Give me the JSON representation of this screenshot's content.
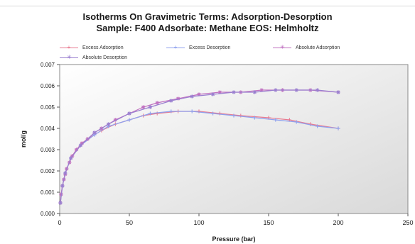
{
  "chart_data": {
    "type": "line",
    "title": "Isotherms On Gravimetric Terms: Adsorption-Desorption",
    "subtitle": "Sample: F400    Adsorbate: Methane    EOS: Helmholtz",
    "xlabel": "Pressure (bar)",
    "ylabel": "mol/g",
    "xlim": [
      0,
      250
    ],
    "ylim": [
      0,
      0.007
    ],
    "xticks": [
      "0",
      "50",
      "100",
      "150",
      "200",
      "250"
    ],
    "yticks": [
      "0.000",
      "0.001",
      "0.002",
      "0.003",
      "0.004",
      "0.005",
      "0.006",
      "0.007"
    ],
    "grid": false,
    "legend_position": "top",
    "series": [
      {
        "name": "Excess Adsorption",
        "color": "#e87a90",
        "marker": "plus",
        "points": [
          [
            0.5,
            0.0005
          ],
          [
            1,
            0.0009
          ],
          [
            2,
            0.0013
          ],
          [
            3,
            0.0016
          ],
          [
            4,
            0.00185
          ],
          [
            5,
            0.0021
          ],
          [
            7,
            0.0024
          ],
          [
            9,
            0.0027
          ],
          [
            12,
            0.003
          ],
          [
            16,
            0.0033
          ],
          [
            20,
            0.0035
          ],
          [
            25,
            0.0037
          ],
          [
            30,
            0.0039
          ],
          [
            40,
            0.0042
          ],
          [
            50,
            0.0044
          ],
          [
            60,
            0.0046
          ],
          [
            70,
            0.0047
          ],
          [
            85,
            0.0048
          ],
          [
            100,
            0.0048
          ],
          [
            115,
            0.0047
          ],
          [
            130,
            0.0046
          ],
          [
            150,
            0.0045
          ],
          [
            165,
            0.0044
          ],
          [
            180,
            0.0042
          ],
          [
            200,
            0.004
          ]
        ]
      },
      {
        "name": "Excess Desorption",
        "color": "#8ea0ee",
        "marker": "plus",
        "points": [
          [
            200,
            0.004
          ],
          [
            185,
            0.0041
          ],
          [
            170,
            0.0043
          ],
          [
            155,
            0.0044
          ],
          [
            140,
            0.0045
          ],
          [
            125,
            0.0046
          ],
          [
            110,
            0.0047
          ],
          [
            95,
            0.0048
          ],
          [
            80,
            0.0048
          ],
          [
            65,
            0.0047
          ],
          [
            50,
            0.0044
          ],
          [
            35,
            0.0041
          ],
          [
            25,
            0.0037
          ],
          [
            15,
            0.0032
          ],
          [
            8,
            0.0026
          ],
          [
            4,
            0.0019
          ],
          [
            2,
            0.0013
          ],
          [
            0.5,
            0.0005
          ]
        ]
      },
      {
        "name": "Absolute Adsorption",
        "color": "#c070c0",
        "marker": "star",
        "points": [
          [
            0.5,
            0.0005
          ],
          [
            1,
            0.0009
          ],
          [
            2,
            0.0013
          ],
          [
            3,
            0.0016
          ],
          [
            4,
            0.00185
          ],
          [
            5,
            0.0021
          ],
          [
            7,
            0.0024
          ],
          [
            9,
            0.0027
          ],
          [
            12,
            0.003
          ],
          [
            16,
            0.0033
          ],
          [
            20,
            0.0035
          ],
          [
            25,
            0.0038
          ],
          [
            30,
            0.004
          ],
          [
            40,
            0.0044
          ],
          [
            50,
            0.0047
          ],
          [
            60,
            0.005
          ],
          [
            70,
            0.0052
          ],
          [
            85,
            0.0054
          ],
          [
            100,
            0.0056
          ],
          [
            115,
            0.0057
          ],
          [
            130,
            0.0057
          ],
          [
            145,
            0.0058
          ],
          [
            160,
            0.0058
          ],
          [
            180,
            0.0058
          ],
          [
            200,
            0.0057
          ]
        ]
      },
      {
        "name": "Absolute Desorption",
        "color": "#9a7fd0",
        "marker": "star",
        "points": [
          [
            200,
            0.0057
          ],
          [
            185,
            0.0058
          ],
          [
            170,
            0.0058
          ],
          [
            155,
            0.0058
          ],
          [
            140,
            0.0057
          ],
          [
            125,
            0.0057
          ],
          [
            110,
            0.0056
          ],
          [
            95,
            0.0055
          ],
          [
            80,
            0.0053
          ],
          [
            65,
            0.005
          ],
          [
            50,
            0.0047
          ],
          [
            35,
            0.0042
          ],
          [
            25,
            0.0038
          ],
          [
            15,
            0.0032
          ],
          [
            8,
            0.0026
          ],
          [
            4,
            0.0019
          ],
          [
            2,
            0.0013
          ],
          [
            0.5,
            0.0005
          ]
        ]
      }
    ]
  }
}
